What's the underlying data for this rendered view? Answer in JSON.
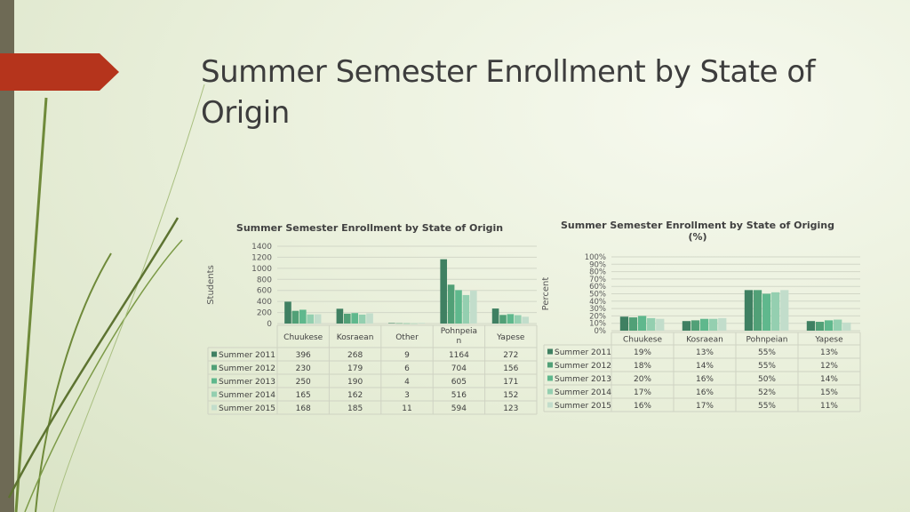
{
  "slide": {
    "title": "Summer Semester Enrollment by State of Origin"
  },
  "colors": {
    "accent_red": "#b5341c",
    "left_bar": "#6e6a55",
    "series": [
      "#3f8062",
      "#51a077",
      "#5fb88d",
      "#94cfb0",
      "#c2ddcb"
    ]
  },
  "chart_data": [
    {
      "type": "bar",
      "title": "Summer Semester Enrollment by State of Origin",
      "ylabel": "Students",
      "xlabel": "",
      "ylim": [
        0,
        1400
      ],
      "yticks": [
        "1400",
        "1200",
        "1000",
        "800",
        "600",
        "400",
        "200",
        "0"
      ],
      "grid": true,
      "data_table": true,
      "categories": [
        "Chuukese",
        "Kosraean",
        "Other",
        "Pohnpeian",
        "Yapese"
      ],
      "category_labels": [
        "Chuukese",
        "Kosraean",
        "Other",
        "Pohnpeia n",
        "Yapese"
      ],
      "series": [
        {
          "name": "Summer 2011",
          "values": [
            396,
            268,
            9,
            1164,
            272
          ]
        },
        {
          "name": "Summer 2012",
          "values": [
            230,
            179,
            6,
            704,
            156
          ]
        },
        {
          "name": "Summer 2013",
          "values": [
            250,
            190,
            4,
            605,
            171
          ]
        },
        {
          "name": "Summer 2014",
          "values": [
            165,
            162,
            3,
            516,
            152
          ]
        },
        {
          "name": "Summer 2015",
          "values": [
            168,
            185,
            11,
            594,
            123
          ]
        }
      ]
    },
    {
      "type": "bar",
      "title": "Summer Semester Enrollment by State of Origing (%)",
      "ylabel": "Percent",
      "xlabel": "",
      "ylim": [
        0,
        100
      ],
      "yticks": [
        "100%",
        "90%",
        "80%",
        "70%",
        "60%",
        "50%",
        "40%",
        "30%",
        "20%",
        "10%",
        "0%"
      ],
      "grid": true,
      "data_table": true,
      "categories": [
        "Chuukese",
        "Kosraean",
        "Pohnpeian",
        "Yapese"
      ],
      "category_labels": [
        "Chuukese",
        "Kosraean",
        "Pohnpeian",
        "Yapese"
      ],
      "series": [
        {
          "name": "Summer 2011",
          "values": [
            19,
            13,
            55,
            13
          ],
          "labels": [
            "19%",
            "13%",
            "55%",
            "13%"
          ]
        },
        {
          "name": "Summer 2012",
          "values": [
            18,
            14,
            55,
            12
          ],
          "labels": [
            "18%",
            "14%",
            "55%",
            "12%"
          ]
        },
        {
          "name": "Summer 2013",
          "values": [
            20,
            16,
            50,
            14
          ],
          "labels": [
            "20%",
            "16%",
            "50%",
            "14%"
          ]
        },
        {
          "name": "Summer 2014",
          "values": [
            17,
            16,
            52,
            15
          ],
          "labels": [
            "17%",
            "16%",
            "52%",
            "15%"
          ]
        },
        {
          "name": "Summer 2015",
          "values": [
            16,
            17,
            55,
            11
          ],
          "labels": [
            "16%",
            "17%",
            "55%",
            "11%"
          ]
        }
      ]
    }
  ]
}
